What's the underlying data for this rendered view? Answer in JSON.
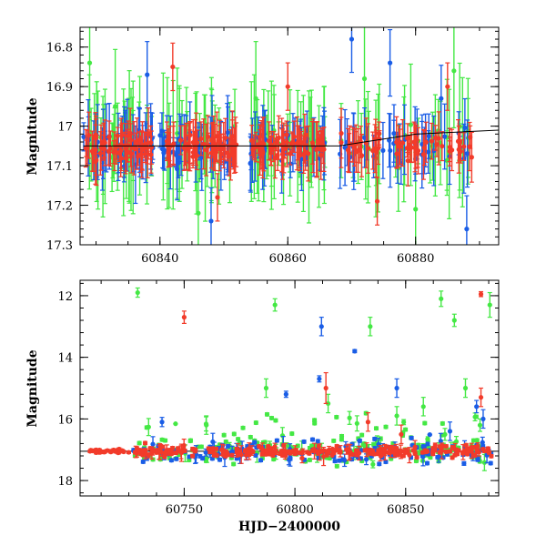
{
  "chart_data": [
    {
      "type": "scatter",
      "title": "",
      "xlabel": "",
      "ylabel": "Magnitude",
      "xlim": [
        60827.5,
        60893
      ],
      "ylim": [
        17.3,
        16.75
      ],
      "y_inverted": true,
      "grid": false,
      "legend": "none",
      "x_ticks": [
        60840,
        60860,
        60880
      ],
      "y_ticks": [
        16.8,
        16.9,
        17,
        17.1,
        17.2,
        17.3
      ],
      "y_tick_labels": [
        "16.8",
        "16.9",
        "17",
        "17.1",
        "17.2",
        "17.3"
      ],
      "series": [
        {
          "color": "#44e844",
          "marker": "circle",
          "typical_error": 0.12,
          "outliers": [
            [
              60829,
              16.84
            ],
            [
              60833,
              16.95
            ],
            [
              60846,
              17.22
            ],
            [
              60855,
              16.93
            ],
            [
              60872,
              16.88
            ],
            [
              60880,
              17.21
            ],
            [
              60886,
              16.86
            ]
          ]
        },
        {
          "color": "#1a5de6",
          "marker": "circle",
          "typical_error": 0.07,
          "outliers": [
            [
              60838,
              16.87
            ],
            [
              60848,
              17.24
            ],
            [
              60870,
              16.78
            ],
            [
              60876,
              16.84
            ],
            [
              60884,
              16.93
            ],
            [
              60888,
              17.26
            ]
          ]
        },
        {
          "color": "#f23b2a",
          "marker": "circle",
          "typical_error": 0.05,
          "outliers": [
            [
              60842,
              16.85
            ],
            [
              60849,
              17.18
            ],
            [
              60860,
              16.9
            ],
            [
              60874,
              17.19
            ],
            [
              60885,
              16.9
            ]
          ]
        }
      ],
      "segments": [
        [
          60828,
          60839
        ],
        [
          60840,
          60852
        ],
        [
          60854,
          60866
        ],
        [
          60868,
          60889
        ]
      ],
      "baseline": 17.05,
      "model_line": [
        [
          60828,
          17.05
        ],
        [
          60868,
          17.05
        ],
        [
          60880,
          17.02
        ],
        [
          60893,
          17.01
        ]
      ]
    },
    {
      "type": "scatter",
      "title": "",
      "xlabel": "HJD−2400000",
      "ylabel": "Magnitude",
      "xlim": [
        60703,
        60892
      ],
      "ylim": [
        18.5,
        11.5
      ],
      "y_inverted": true,
      "grid": false,
      "legend": "none",
      "x_ticks": [
        60750,
        60800,
        60850
      ],
      "y_ticks": [
        12,
        14,
        16,
        18
      ],
      "y_tick_labels": [
        "12",
        "14",
        "16",
        "18"
      ],
      "series": [
        {
          "color": "#44e844",
          "marker": "circle",
          "points": [
            [
              60729,
              11.9,
              0.15
            ],
            [
              60791,
              12.3,
              0.2
            ],
            [
              60866,
              12.1,
              0.25
            ],
            [
              60872,
              12.8,
              0.2
            ],
            [
              60888,
              12.3,
              0.4
            ],
            [
              60834,
              13.0,
              0.3
            ],
            [
              60787,
              15.0,
              0.3
            ],
            [
              60760,
              16.2,
              0.3
            ],
            [
              60815,
              15.5,
              0.3
            ],
            [
              60846,
              15.9,
              0.3
            ],
            [
              60858,
              15.6,
              0.3
            ],
            [
              60877,
              15.0,
              0.3
            ]
          ]
        },
        {
          "color": "#1a5de6",
          "marker": "circle",
          "points": [
            [
              60812,
              13.0,
              0.3
            ],
            [
              60827,
              13.8,
              0.05
            ],
            [
              60740,
              16.1,
              0.15
            ],
            [
              60796,
              15.2,
              0.1
            ],
            [
              60811,
              14.7,
              0.1
            ],
            [
              60846,
              15.0,
              0.3
            ],
            [
              60885,
              16.0,
              0.3
            ],
            [
              60882,
              15.6,
              0.2
            ],
            [
              60870,
              16.4,
              0.3
            ]
          ]
        },
        {
          "color": "#f23b2a",
          "marker": "circle",
          "points": [
            [
              60750,
              12.7,
              0.2
            ],
            [
              60884,
              11.95,
              0.08
            ],
            [
              60814,
              15.0,
              0.5
            ],
            [
              60884,
              15.3,
              0.3
            ],
            [
              60833,
              16.1,
              0.3
            ],
            [
              60848,
              16.5,
              0.3
            ]
          ]
        }
      ],
      "baseline": 17.05,
      "model_line": [
        [
          60703,
          17.05
        ],
        [
          60892,
          17.05
        ]
      ]
    }
  ]
}
